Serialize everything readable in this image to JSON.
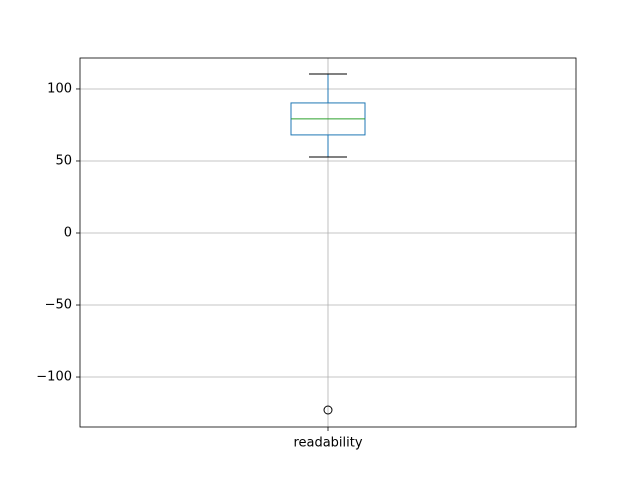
{
  "chart_data": {
    "type": "box",
    "categories": [
      "readability"
    ],
    "boxes": [
      {
        "whislo": 52.8,
        "q1": 68.1,
        "med": 79.2,
        "q3": 90.3,
        "whishi": 110.4,
        "fliers": [
          -122.9
        ]
      }
    ],
    "box_color": "#1f77b4",
    "median_color": "#2ca02c",
    "ylim": [
      -134.7,
      121.5
    ],
    "yticks": [
      {
        "value": -100,
        "label": "−100"
      },
      {
        "value": -50,
        "label": "−50"
      },
      0,
      50,
      100
    ],
    "grid": true
  }
}
